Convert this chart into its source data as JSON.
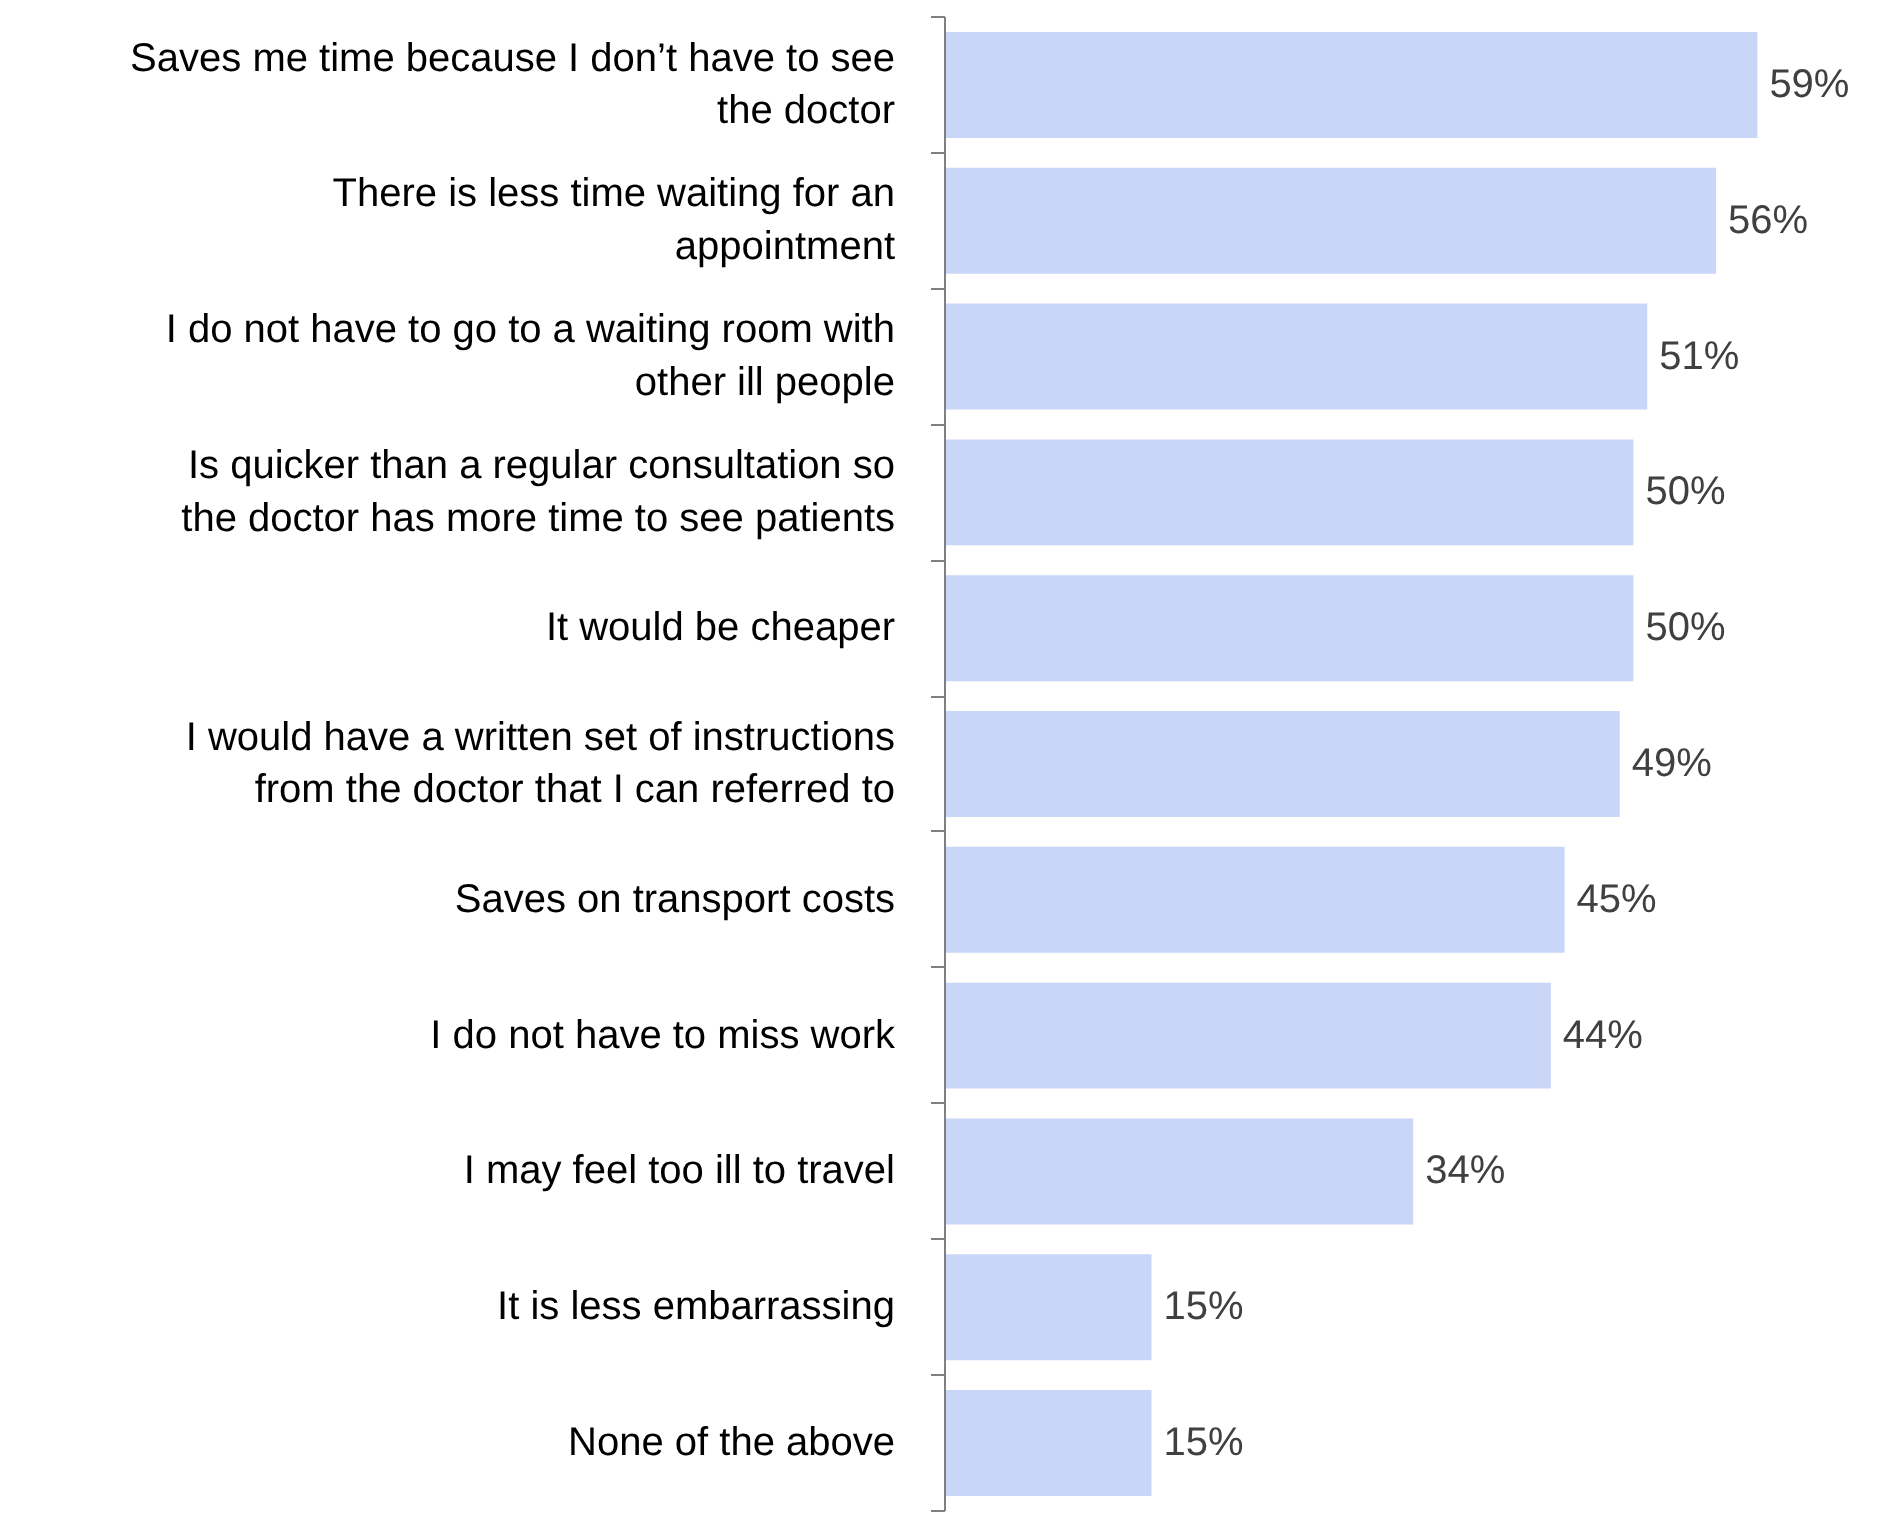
{
  "chart_data": {
    "type": "bar",
    "orientation": "horizontal",
    "categories": [
      "Saves me time because I don’t have to see the doctor",
      "There is less time waiting for an appointment",
      "I do not have to go to a waiting room with other ill people",
      "Is quicker than a regular consultation so the doctor has more time to see patients",
      "It would be cheaper",
      "I would have a written set of instructions from the doctor that I can referred to",
      "Saves on transport costs",
      "I do not have to miss work",
      "I may feel too ill to travel",
      "It is less embarrassing",
      "None of the above"
    ],
    "values": [
      59,
      56,
      51,
      50,
      50,
      49,
      45,
      44,
      34,
      15,
      15
    ],
    "value_labels": [
      "59%",
      "56%",
      "51%",
      "50%",
      "50%",
      "49%",
      "45%",
      "44%",
      "34%",
      "15%",
      "15%"
    ],
    "color": "#c9d6f8",
    "grid": false
  }
}
